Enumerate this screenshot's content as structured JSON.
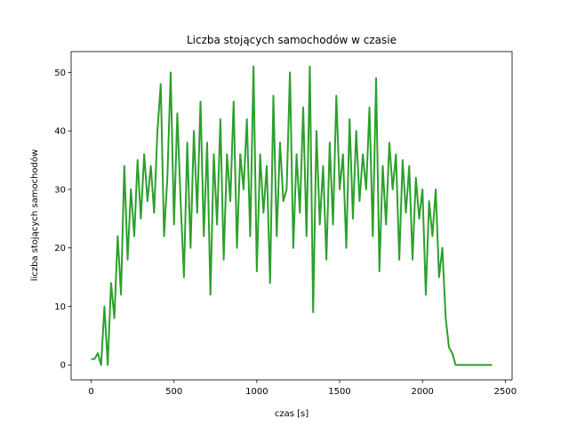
{
  "chart_data": {
    "type": "line",
    "title": "Liczba stojących samochodów w czasie",
    "x_label": "czas [s]",
    "y_label": "liczba stojących samochodów",
    "x": [
      0,
      20,
      40,
      60,
      80,
      100,
      120,
      140,
      160,
      180,
      200,
      220,
      240,
      260,
      280,
      300,
      320,
      340,
      360,
      380,
      400,
      420,
      440,
      460,
      480,
      500,
      520,
      540,
      560,
      580,
      600,
      620,
      640,
      660,
      680,
      700,
      720,
      740,
      760,
      780,
      800,
      820,
      840,
      860,
      880,
      900,
      920,
      940,
      960,
      980,
      1000,
      1020,
      1040,
      1060,
      1080,
      1100,
      1120,
      1140,
      1160,
      1180,
      1200,
      1220,
      1240,
      1260,
      1280,
      1300,
      1320,
      1340,
      1360,
      1380,
      1400,
      1420,
      1440,
      1460,
      1480,
      1500,
      1520,
      1540,
      1560,
      1580,
      1600,
      1620,
      1640,
      1660,
      1680,
      1700,
      1720,
      1740,
      1760,
      1780,
      1800,
      1820,
      1840,
      1860,
      1880,
      1900,
      1920,
      1940,
      1960,
      1980,
      2000,
      2020,
      2040,
      2060,
      2080,
      2100,
      2120,
      2140,
      2160,
      2180,
      2200,
      2220,
      2240,
      2260,
      2280,
      2300,
      2320,
      2340,
      2360,
      2380,
      2400,
      2420
    ],
    "series": [
      {
        "color": "#2ca02c",
        "values": [
          1,
          1,
          2,
          0,
          10,
          0,
          14,
          8,
          22,
          12,
          34,
          18,
          30,
          22,
          35,
          25,
          36,
          28,
          34,
          26,
          40,
          48,
          22,
          32,
          50,
          24,
          43,
          28,
          15,
          38,
          20,
          40,
          26,
          45,
          22,
          38,
          12,
          36,
          24,
          42,
          18,
          36,
          28,
          45,
          20,
          36,
          30,
          42,
          22,
          51,
          16,
          36,
          26,
          34,
          14,
          46,
          22,
          38,
          28,
          30,
          50,
          20,
          36,
          26,
          44,
          22,
          51,
          9,
          40,
          24,
          34,
          18,
          38,
          24,
          46,
          30,
          36,
          20,
          42,
          25,
          40,
          28,
          36,
          30,
          44,
          22,
          49,
          16,
          34,
          24,
          38,
          30,
          36,
          18,
          35,
          26,
          34,
          18,
          32,
          25,
          30,
          12,
          28,
          22,
          30,
          15,
          20,
          8,
          3,
          2,
          0,
          0,
          0,
          0,
          0,
          0,
          0,
          0,
          0,
          0,
          0,
          0
        ]
      }
    ],
    "xlim": [
      -121,
      2541
    ],
    "ylim": [
      -2.55,
      53.55
    ],
    "xticks": [
      0,
      500,
      1000,
      1500,
      2000,
      2500
    ],
    "yticks": [
      0,
      10,
      20,
      30,
      40,
      50
    ]
  }
}
